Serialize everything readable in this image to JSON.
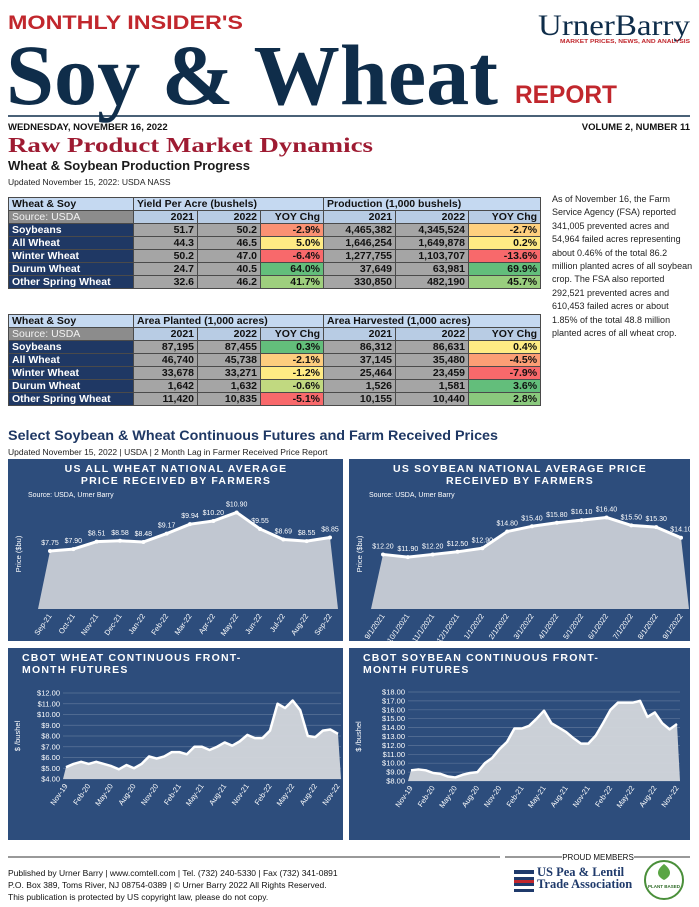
{
  "header": {
    "kicker": "MONTHLY INSIDER'S",
    "title": "Soy & Wheat",
    "title_suffix": "REPORT",
    "brand": "UrnerBarry",
    "brand_tagline": "MARKET PRICES, NEWS, AND ANALYSIS",
    "date": "WEDNESDAY, NOVEMBER 16, 2022",
    "volume": "VOLUME 2, NUMBER 11"
  },
  "section1": {
    "title": "Raw Product Market Dynamics",
    "subtitle": "Wheat & Soybean Production Progress",
    "updated": "Updated November 15, 2022: USDA NASS",
    "note": "As of November 16, the Farm Service Agency (FSA) reported 341,005 prevented acres and 54,964 failed acres representing about 0.46% of the total 86.2 million planted acres of all soybean crop. The FSA also reported 292,521 prevented acres and 610,453 failed acres or about 1.85% of the total 48.8 million planted acres of all wheat crop."
  },
  "tables": [
    {
      "header": [
        "Wheat & Soy",
        "Yield Per Acre (bushels)",
        "Production (1,000 bushels)"
      ],
      "subheader": [
        "Source: USDA",
        "2021",
        "2022",
        "YOY Chg",
        "2021",
        "2022",
        "YOY Chg"
      ],
      "rows": [
        [
          "Soybeans",
          "51.7",
          "50.2",
          "-2.9%",
          "4,465,382",
          "4,345,524",
          "-2.7%"
        ],
        [
          "All Wheat",
          "44.3",
          "46.5",
          "5.0%",
          "1,646,254",
          "1,649,878",
          "0.2%"
        ],
        [
          "Winter Wheat",
          "50.2",
          "47.0",
          "-6.4%",
          "1,277,755",
          "1,103,707",
          "-13.6%"
        ],
        [
          "Durum Wheat",
          "24.7",
          "40.5",
          "64.0%",
          "37,649",
          "63,981",
          "69.9%"
        ],
        [
          "Other Spring Wheat",
          "32.6",
          "46.2",
          "41.7%",
          "330,850",
          "482,190",
          "45.7%"
        ]
      ]
    },
    {
      "header": [
        "Wheat & Soy",
        "Area Planted (1,000 acres)",
        "Area Harvested (1,000 acres)"
      ],
      "subheader": [
        "Source: USDA",
        "2021",
        "2022",
        "YOY Chg",
        "2021",
        "2022",
        "YOY Chg"
      ],
      "rows": [
        [
          "Soybeans",
          "87,195",
          "87,455",
          "0.3%",
          "86,312",
          "86,631",
          "0.4%"
        ],
        [
          "All Wheat",
          "46,740",
          "45,738",
          "-2.1%",
          "37,145",
          "35,480",
          "-4.5%"
        ],
        [
          "Winter Wheat",
          "33,678",
          "33,271",
          "-1.2%",
          "25,464",
          "23,459",
          "-7.9%"
        ],
        [
          "Durum Wheat",
          "1,642",
          "1,632",
          "-0.6%",
          "1,526",
          "1,581",
          "3.6%"
        ],
        [
          "Other Spring Wheat",
          "11,420",
          "10,835",
          "-5.1%",
          "10,155",
          "10,440",
          "2.8%"
        ]
      ]
    }
  ],
  "section2": {
    "title": "Select Soybean & Wheat Continuous Futures and Farm Received Prices",
    "updated": "Updated November 15, 2022 | USDA | 2 Month Lag in Farmer Received Price Report"
  },
  "chart_data": [
    {
      "type": "line",
      "title": "US ALL WHEAT NATIONAL AVERAGE PRICE RECEIVED BY FARMERS",
      "source": "Source: USDA, Urner Barry",
      "y_label": "Price ($bu)",
      "categories": [
        "Sep-21",
        "Oct-21",
        "Nov-21",
        "Dec-21",
        "Jan-22",
        "Feb-22",
        "Mar-22",
        "Apr-22",
        "May-22",
        "Jun-22",
        "Jul-22",
        "Aug-22",
        "Sep-22"
      ],
      "values": [
        7.75,
        7.9,
        8.51,
        8.58,
        8.48,
        9.17,
        9.94,
        10.2,
        10.9,
        9.55,
        8.69,
        8.55,
        8.85
      ],
      "value_labels": [
        "$7.75",
        "$7.90",
        "$8.51",
        "$8.58",
        "$8.48",
        "$9.17",
        "$9.94",
        "$10.20",
        "$10.90",
        "$9.55",
        "$8.69",
        "$8.55",
        "$8.85"
      ],
      "ylim": [
        3,
        12
      ],
      "color": "#ffffff"
    },
    {
      "type": "line",
      "title": "US SOYBEAN NATIONAL AVERAGE PRICE RECEIVED BY FARMERS",
      "source": "Source: USDA, Urner Barry",
      "y_label": "Price ($bu)",
      "categories": [
        "9/1/2021",
        "10/1/2021",
        "11/1/2021",
        "12/1/2021",
        "1/1/2022",
        "2/1/2022",
        "3/1/2022",
        "4/1/2022",
        "5/1/2022",
        "6/1/2022",
        "7/1/2022",
        "8/1/2022",
        "9/1/2022"
      ],
      "values": [
        12.2,
        11.9,
        12.2,
        12.5,
        12.9,
        14.8,
        15.4,
        15.8,
        16.1,
        16.4,
        15.5,
        15.3,
        14.1
      ],
      "value_labels": [
        "$12.20",
        "$11.90",
        "$12.20",
        "$12.50",
        "$12.90",
        "$14.80",
        "$15.40",
        "$15.80",
        "$16.10",
        "$16.40",
        "$15.50",
        "$15.30",
        "$14.10"
      ],
      "ylim": [
        6,
        18.5
      ],
      "color": "#ffffff"
    },
    {
      "type": "line",
      "title": "CBOT WHEAT CONTINUOUS FRONT-MONTH FUTURES",
      "y_label": "$ /bushel",
      "categories": [
        "Nov-19",
        null,
        null,
        "Feb-20",
        null,
        null,
        "May-20",
        null,
        null,
        "Aug-20",
        null,
        null,
        "Nov-20",
        null,
        null,
        "Feb-21",
        null,
        null,
        "May-21",
        null,
        null,
        "Aug-21",
        null,
        null,
        "Nov-21",
        null,
        null,
        "Feb-22",
        null,
        null,
        "May-22",
        null,
        null,
        "Aug-22",
        null,
        null,
        "Nov-22"
      ],
      "values": [
        5.1,
        5.4,
        5.6,
        5.4,
        5.6,
        5.4,
        5.2,
        4.9,
        5.3,
        5.0,
        5.4,
        6.1,
        5.9,
        6.1,
        6.5,
        6.5,
        6.3,
        7.0,
        7.0,
        6.7,
        7.0,
        7.4,
        7.1,
        7.5,
        8.1,
        7.8,
        7.8,
        8.5,
        11.0,
        10.6,
        11.3,
        10.4,
        8.0,
        7.9,
        8.5,
        8.6,
        8.2
      ],
      "ylim": [
        4,
        12
      ],
      "yticks": [
        {
          "value": 4,
          "label": "$4.00"
        },
        {
          "value": 5,
          "label": "$5.00"
        },
        {
          "value": 6,
          "label": "$6.00"
        },
        {
          "value": 7,
          "label": "$7.00"
        },
        {
          "value": 8,
          "label": "$8.00"
        },
        {
          "value": 9,
          "label": "$9.00"
        },
        {
          "value": 10,
          "label": "$10.00"
        },
        {
          "value": 11,
          "label": "$11.00"
        },
        {
          "value": 12,
          "label": "$12.00"
        }
      ],
      "grid": true,
      "color": "#ffffff"
    },
    {
      "type": "line",
      "title": "CBOT SOYBEAN CONTINUOUS FRONT-MONTH FUTURES",
      "y_label": "$ /bushel",
      "categories": [
        "Nov-19",
        null,
        null,
        "Feb-20",
        null,
        null,
        "May-20",
        null,
        null,
        "Aug-20",
        null,
        null,
        "Nov-20",
        null,
        null,
        "Feb-21",
        null,
        null,
        "May-21",
        null,
        null,
        "Aug-21",
        null,
        null,
        "Nov-21",
        null,
        null,
        "Feb-22",
        null,
        null,
        "May-22",
        null,
        null,
        "Aug-22",
        null,
        null,
        "Nov-22"
      ],
      "values": [
        9.2,
        9.3,
        9.2,
        8.9,
        8.8,
        8.5,
        8.4,
        8.7,
        8.9,
        9.0,
        10.0,
        10.6,
        11.6,
        12.4,
        13.9,
        13.9,
        14.2,
        15.0,
        15.9,
        14.5,
        14.0,
        13.5,
        12.8,
        12.2,
        12.2,
        13.1,
        14.5,
        16.0,
        16.8,
        16.8,
        16.8,
        17.0,
        15.2,
        15.7,
        14.5,
        13.8,
        14.4
      ],
      "ylim": [
        8,
        18
      ],
      "yticks": [
        {
          "value": 8,
          "label": "$8.00"
        },
        {
          "value": 9,
          "label": "$9.00"
        },
        {
          "value": 10,
          "label": "$10.00"
        },
        {
          "value": 11,
          "label": "$11.00"
        },
        {
          "value": 12,
          "label": "$12.00"
        },
        {
          "value": 13,
          "label": "$13.00"
        },
        {
          "value": 14,
          "label": "$14.00"
        },
        {
          "value": 15,
          "label": "$15.00"
        },
        {
          "value": 16,
          "label": "$16.00"
        },
        {
          "value": 17,
          "label": "$17.00"
        },
        {
          "value": 18,
          "label": "$18.00"
        }
      ],
      "grid": true,
      "color": "#ffffff"
    }
  ],
  "footer": {
    "lines": [
      "Published by Urner Barry | www.comtell.com | Tel. (732) 240-5330 | Fax (732) 341-0891",
      "P.O. Box 389, Toms River, NJ 08754-0389 | © Urner Barry 2022 All Rights Reserved.",
      "This publication is protected by US copyright law, please do not copy."
    ],
    "members_label": "PROUD MEMBERS",
    "members": [
      "US Pea & Lentil Trade Association",
      "PLANT BASED"
    ]
  }
}
